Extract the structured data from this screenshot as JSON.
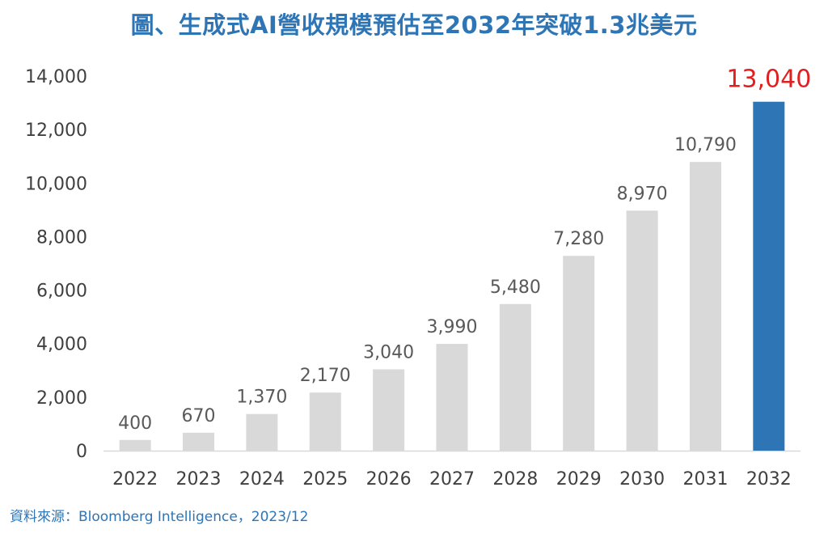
{
  "chart_data": {
    "type": "bar",
    "title": "圖、生成式AI營收規模預估至2032年突破1.3兆美元",
    "categories": [
      "2022",
      "2023",
      "2024",
      "2025",
      "2026",
      "2027",
      "2028",
      "2029",
      "2030",
      "2031",
      "2032"
    ],
    "values": [
      400,
      670,
      1370,
      2170,
      3040,
      3990,
      5480,
      7280,
      8970,
      10790,
      13040
    ],
    "data_labels": [
      "400",
      "670",
      "1,370",
      "2,170",
      "3,040",
      "3,990",
      "5,480",
      "7,280",
      "8,970",
      "10,790",
      "13,040"
    ],
    "yticks": [
      "0",
      "2,000",
      "4,000",
      "6,000",
      "8,000",
      "10,000",
      "12,000",
      "14,000"
    ],
    "ylim": [
      0,
      14000
    ],
    "xlabel": "",
    "ylabel": "",
    "grid": false,
    "legend": "none",
    "highlight_category": "2032"
  },
  "colors": {
    "title": "#2e75b6",
    "bar": "#d9d9d9",
    "highlight_bar": "#2e75b6",
    "highlight_label": "#e02020",
    "axis_text": "#404040",
    "label_text": "#595959",
    "axis_line": "#d9d9d9",
    "source": "#2e75b6"
  },
  "source_note": "資料來源：Bloomberg Intelligence，2023/12"
}
